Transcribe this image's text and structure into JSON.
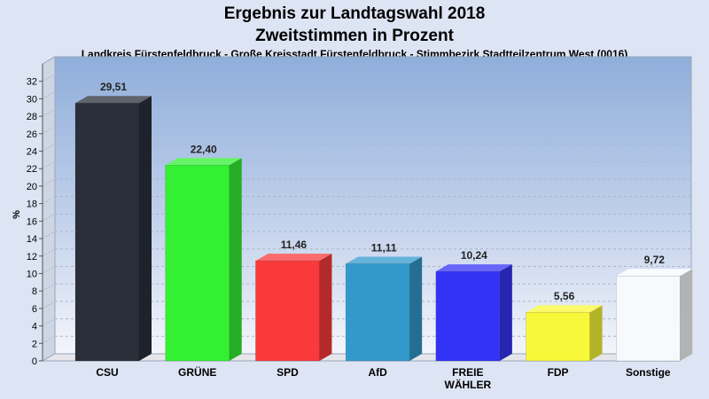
{
  "chart_data": {
    "type": "bar",
    "title": "Ergebnis zur Landtagswahl 2018",
    "subtitle": "Zweitstimmen in Prozent",
    "caption": "Landkreis Fürstenfeldbruck - Große Kreisstadt Fürstenfeldbruck - Stimmbezirk Stadtteilzentrum West (0016)",
    "ylabel": "%",
    "xlabel": "",
    "ylim": [
      0,
      34
    ],
    "yticks": [
      0,
      2,
      4,
      6,
      8,
      10,
      12,
      14,
      16,
      18,
      20,
      22,
      24,
      26,
      28,
      30,
      32
    ],
    "grid": true,
    "categories": [
      [
        "CSU"
      ],
      [
        "GRÜNE"
      ],
      [
        "SPD"
      ],
      [
        "AfD"
      ],
      [
        "FREIE",
        "WÄHLER"
      ],
      [
        "FDP"
      ],
      [
        "Sonstige"
      ]
    ],
    "values": [
      29.51,
      22.4,
      11.46,
      11.11,
      10.24,
      5.56,
      9.72
    ],
    "value_labels": [
      "29,51",
      "22,40",
      "11,46",
      "11,11",
      "10,24",
      "5,56",
      "9,72"
    ],
    "colors": [
      "#2a2f3a",
      "#33f033",
      "#fa3a3a",
      "#3399cc",
      "#3333f5",
      "#f8f83a",
      "#f7f9fc"
    ]
  }
}
